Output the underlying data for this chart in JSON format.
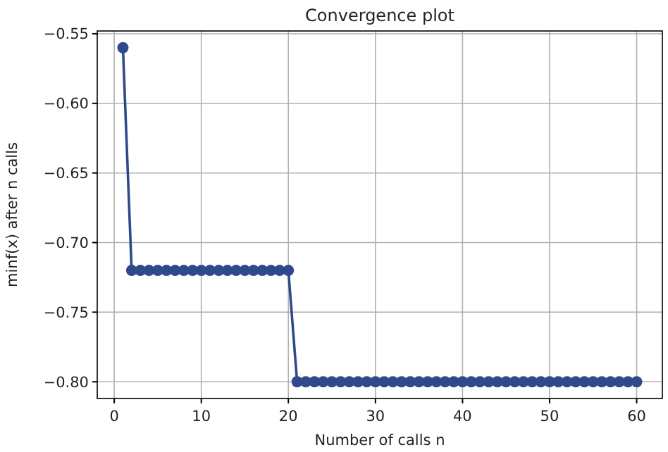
{
  "chart_data": {
    "type": "line",
    "title": "Convergence plot",
    "xlabel": "Number of calls n",
    "ylabel": "minf(x) after n calls",
    "x": [
      1,
      2,
      3,
      4,
      5,
      6,
      7,
      8,
      9,
      10,
      11,
      12,
      13,
      14,
      15,
      16,
      17,
      18,
      19,
      20,
      21,
      22,
      23,
      24,
      25,
      26,
      27,
      28,
      29,
      30,
      31,
      32,
      33,
      34,
      35,
      36,
      37,
      38,
      39,
      40,
      41,
      42,
      43,
      44,
      45,
      46,
      47,
      48,
      49,
      50,
      51,
      52,
      53,
      54,
      55,
      56,
      57,
      58,
      59,
      60
    ],
    "series": [
      {
        "color": "#2f4a8a",
        "values": [
          -0.56,
          -0.72,
          -0.72,
          -0.72,
          -0.72,
          -0.72,
          -0.72,
          -0.72,
          -0.72,
          -0.72,
          -0.72,
          -0.72,
          -0.72,
          -0.72,
          -0.72,
          -0.72,
          -0.72,
          -0.72,
          -0.72,
          -0.72,
          -0.8,
          -0.8,
          -0.8,
          -0.8,
          -0.8,
          -0.8,
          -0.8,
          -0.8,
          -0.8,
          -0.8,
          -0.8,
          -0.8,
          -0.8,
          -0.8,
          -0.8,
          -0.8,
          -0.8,
          -0.8,
          -0.8,
          -0.8,
          -0.8,
          -0.8,
          -0.8,
          -0.8,
          -0.8,
          -0.8,
          -0.8,
          -0.8,
          -0.8,
          -0.8,
          -0.8,
          -0.8,
          -0.8,
          -0.8,
          -0.8,
          -0.8,
          -0.8,
          -0.8,
          -0.8,
          -0.8
        ]
      }
    ],
    "xlim": [
      -1.95,
      62.95
    ],
    "xticks": [
      0,
      10,
      20,
      30,
      40,
      50,
      60
    ],
    "ylim": [
      -0.812,
      -0.548
    ],
    "yticks": [
      {
        "value": -0.55,
        "label": "−0.55"
      },
      {
        "value": -0.6,
        "label": "−0.60"
      },
      {
        "value": -0.65,
        "label": "−0.65"
      },
      {
        "value": -0.7,
        "label": "−0.70"
      },
      {
        "value": -0.75,
        "label": "−0.75"
      },
      {
        "value": -0.8,
        "label": "−0.80"
      }
    ],
    "grid": true,
    "marker": "circle",
    "line_style": "solid"
  }
}
